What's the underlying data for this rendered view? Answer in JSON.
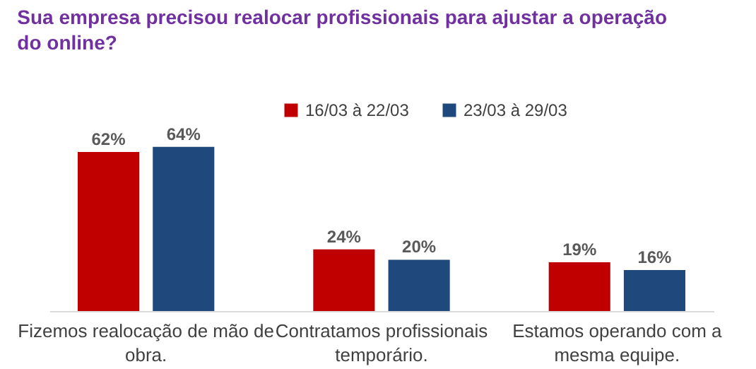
{
  "chart_data": {
    "type": "bar",
    "title": "Sua empresa precisou realocar profissionais para ajustar a operação do online?",
    "categories": [
      "Fizemos realocação de mão de obra.",
      "Contratamos profissionais temporário.",
      "Estamos operando com a mesma equipe."
    ],
    "series": [
      {
        "name": "16/03 à 22/03",
        "color": "#c00000",
        "values": [
          62,
          24,
          19
        ],
        "value_labels": [
          "62%",
          "24%",
          "19%"
        ]
      },
      {
        "name": "23/03 à 29/03",
        "color": "#1f497d",
        "values": [
          64,
          20,
          16
        ],
        "value_labels": [
          "64%",
          "20%",
          "16%"
        ]
      }
    ],
    "legend": "top",
    "grid": false
  }
}
